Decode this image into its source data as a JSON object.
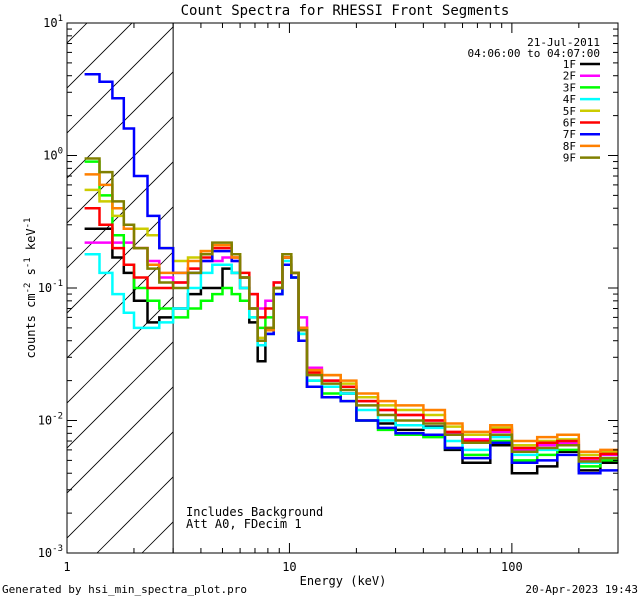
{
  "chart_data": {
    "type": "line",
    "title": "Count Spectra for RHESSI Front Segments",
    "xlabel": "Energy (keV)",
    "ylabel": "counts cm",
    "ylabel_sup1": "-2",
    "ylabel_mid": " s",
    "ylabel_sup2": "-1",
    "ylabel_end": " keV",
    "ylabel_sup3": "-1",
    "xscale": "log",
    "yscale": "log",
    "xlim": [
      1,
      300
    ],
    "ylim": [
      0.001,
      10
    ],
    "xticks_major": [
      1,
      10,
      100
    ],
    "xtick_labels": [
      "1",
      "10",
      "100"
    ],
    "yticks_major": [
      0.001,
      0.01,
      0.1,
      1,
      10
    ],
    "ytick_labels": [
      {
        "base": "10",
        "exp": "-3"
      },
      {
        "base": "10",
        "exp": "-2"
      },
      {
        "base": "10",
        "exp": "-1"
      },
      {
        "base": "10",
        "exp": "0"
      },
      {
        "base": "10",
        "exp": "1"
      }
    ],
    "date": "21-Jul-2011",
    "time_range": "04:06:00 to 04:07:00",
    "annotations": [
      "Includes Background",
      "Att A0, FDecim 1"
    ],
    "shaded_region_xmax": 3,
    "footer_left": "Generated by hsi_min_spectra_plot.pro",
    "footer_right": "20-Apr-2023 19:43",
    "series": [
      {
        "name": "1F",
        "color": "#000000",
        "values": [
          0.28,
          0.28,
          0.17,
          0.13,
          0.08,
          0.055,
          0.06,
          0.07,
          0.09,
          0.1,
          0.1,
          0.14,
          0.13,
          0.1,
          0.055,
          0.028,
          0.045,
          0.1,
          0.17,
          0.12,
          0.04,
          0.018,
          0.015,
          0.016,
          0.01,
          0.0095,
          0.0085,
          0.009,
          0.006,
          0.0048,
          0.0065,
          0.004,
          0.0045,
          0.0058,
          0.0042,
          0.0048
        ]
      },
      {
        "name": "2F",
        "color": "#ff00ff",
        "values": [
          0.22,
          0.22,
          0.22,
          0.22,
          0.2,
          0.16,
          0.12,
          0.11,
          0.14,
          0.16,
          0.16,
          0.17,
          0.16,
          0.12,
          0.09,
          0.07,
          0.08,
          0.11,
          0.15,
          0.13,
          0.06,
          0.025,
          0.02,
          0.018,
          0.014,
          0.012,
          0.011,
          0.01,
          0.008,
          0.0072,
          0.0082,
          0.006,
          0.0065,
          0.0068,
          0.005,
          0.0055
        ]
      },
      {
        "name": "3F",
        "color": "#00ff00",
        "values": [
          0.9,
          0.5,
          0.25,
          0.15,
          0.1,
          0.08,
          0.07,
          0.06,
          0.07,
          0.08,
          0.09,
          0.1,
          0.09,
          0.08,
          0.06,
          0.05,
          0.06,
          0.09,
          0.15,
          0.12,
          0.045,
          0.02,
          0.016,
          0.014,
          0.01,
          0.0085,
          0.0078,
          0.0075,
          0.0062,
          0.0055,
          0.007,
          0.005,
          0.0055,
          0.006,
          0.0045,
          0.005
        ]
      },
      {
        "name": "4F",
        "color": "#00ffff",
        "values": [
          0.18,
          0.13,
          0.09,
          0.065,
          0.05,
          0.05,
          0.055,
          0.07,
          0.1,
          0.13,
          0.15,
          0.15,
          0.13,
          0.1,
          0.06,
          0.037,
          0.045,
          0.09,
          0.16,
          0.12,
          0.045,
          0.02,
          0.018,
          0.016,
          0.012,
          0.01,
          0.0092,
          0.0088,
          0.007,
          0.006,
          0.0075,
          0.0055,
          0.006,
          0.0065,
          0.0048,
          0.0052
        ]
      },
      {
        "name": "5F",
        "color": "#cccc00",
        "values": [
          0.55,
          0.45,
          0.35,
          0.3,
          0.28,
          0.25,
          0.2,
          0.16,
          0.17,
          0.19,
          0.21,
          0.21,
          0.18,
          0.12,
          0.07,
          0.042,
          0.05,
          0.1,
          0.18,
          0.13,
          0.05,
          0.024,
          0.022,
          0.019,
          0.015,
          0.013,
          0.012,
          0.011,
          0.009,
          0.0078,
          0.0088,
          0.0065,
          0.007,
          0.0072,
          0.0055,
          0.0058
        ]
      },
      {
        "name": "6F",
        "color": "#ff0000",
        "values": [
          0.4,
          0.3,
          0.2,
          0.15,
          0.12,
          0.1,
          0.1,
          0.11,
          0.14,
          0.17,
          0.2,
          0.2,
          0.17,
          0.13,
          0.09,
          0.06,
          0.07,
          0.11,
          0.17,
          0.13,
          0.05,
          0.023,
          0.02,
          0.018,
          0.014,
          0.012,
          0.011,
          0.01,
          0.0082,
          0.007,
          0.0085,
          0.0062,
          0.0068,
          0.007,
          0.0052,
          0.0056
        ]
      },
      {
        "name": "7F",
        "color": "#0000ff",
        "values": [
          4.1,
          3.6,
          2.7,
          1.6,
          0.7,
          0.35,
          0.2,
          0.13,
          0.13,
          0.16,
          0.19,
          0.19,
          0.16,
          0.12,
          0.07,
          0.04,
          0.045,
          0.09,
          0.15,
          0.12,
          0.04,
          0.018,
          0.015,
          0.014,
          0.01,
          0.0088,
          0.008,
          0.0078,
          0.0062,
          0.0052,
          0.0068,
          0.0048,
          0.005,
          0.0055,
          0.004,
          0.0042
        ]
      },
      {
        "name": "8F",
        "color": "#ff8000",
        "values": [
          0.72,
          0.6,
          0.4,
          0.28,
          0.2,
          0.15,
          0.13,
          0.13,
          0.16,
          0.19,
          0.21,
          0.21,
          0.17,
          0.12,
          0.07,
          0.04,
          0.048,
          0.1,
          0.17,
          0.13,
          0.05,
          0.024,
          0.022,
          0.02,
          0.016,
          0.014,
          0.013,
          0.012,
          0.0095,
          0.0082,
          0.0092,
          0.007,
          0.0075,
          0.0078,
          0.0058,
          0.006
        ]
      },
      {
        "name": "9F",
        "color": "#808000",
        "values": [
          0.95,
          0.75,
          0.45,
          0.3,
          0.2,
          0.14,
          0.11,
          0.1,
          0.13,
          0.18,
          0.22,
          0.22,
          0.18,
          0.12,
          0.07,
          0.04,
          0.05,
          0.1,
          0.18,
          0.13,
          0.048,
          0.022,
          0.019,
          0.017,
          0.013,
          0.011,
          0.01,
          0.0095,
          0.0078,
          0.0068,
          0.0078,
          0.0058,
          0.0062,
          0.0065,
          0.0049,
          0.0052
        ]
      }
    ],
    "energy_edges": [
      1.2,
      1.4,
      1.6,
      1.8,
      2.0,
      2.3,
      2.6,
      3.0,
      3.5,
      4.0,
      4.5,
      5.0,
      5.5,
      6.0,
      6.6,
      7.2,
      7.8,
      8.5,
      9.3,
      10.2,
      11.0,
      12.0,
      14.0,
      17.0,
      20.0,
      25.0,
      30.0,
      40.0,
      50.0,
      60.0,
      80.0,
      100.0,
      130.0,
      160.0,
      200.0,
      250.0,
      300.0
    ]
  }
}
